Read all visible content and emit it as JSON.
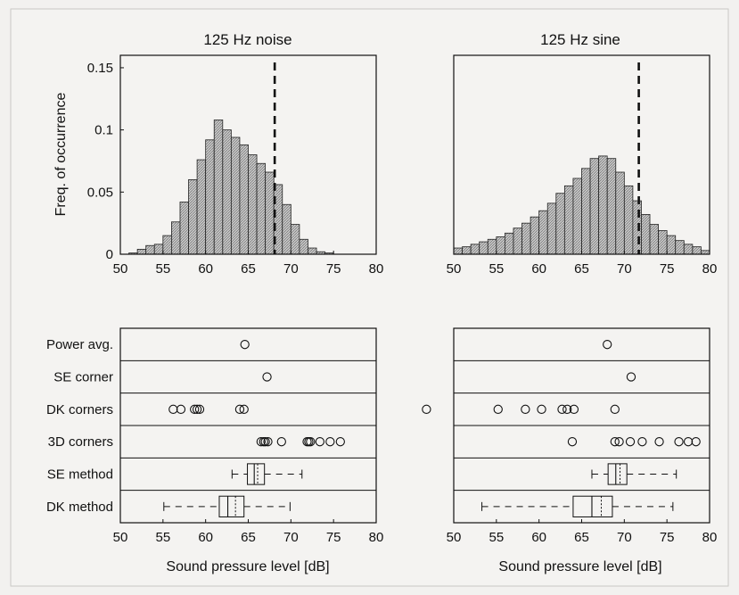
{
  "chart_data": [
    {
      "type": "bar",
      "title": "125 Hz noise",
      "ylabel": "Freq. of occurrence",
      "xlim": [
        50,
        80
      ],
      "ylim": [
        0,
        0.16
      ],
      "xticks": [
        "50",
        "55",
        "60",
        "65",
        "70",
        "75",
        "80"
      ],
      "yticks": [
        "0",
        "0.05",
        "0.1",
        "0.15"
      ],
      "bin_width": 1,
      "bin_centers": [
        50.5,
        51.5,
        52.5,
        53.5,
        54.5,
        55.5,
        56.5,
        57.5,
        58.5,
        59.5,
        60.5,
        61.5,
        62.5,
        63.5,
        64.5,
        65.5,
        66.5,
        67.5,
        68.5,
        69.5,
        70.5,
        71.5,
        72.5,
        73.5,
        74.5,
        75.5,
        76.5,
        77.5,
        78.5,
        79.5
      ],
      "values": [
        0,
        0.001,
        0.004,
        0.007,
        0.008,
        0.015,
        0.026,
        0.042,
        0.06,
        0.076,
        0.092,
        0.108,
        0.1,
        0.094,
        0.088,
        0.08,
        0.073,
        0.066,
        0.056,
        0.04,
        0.024,
        0.012,
        0.005,
        0.002,
        0.001,
        0,
        0,
        0,
        0,
        0
      ],
      "reference_line_x": 68.1
    },
    {
      "type": "bar",
      "title": "125 Hz sine",
      "xlim": [
        50,
        80
      ],
      "ylim": [
        0,
        0.16
      ],
      "xticks": [
        "50",
        "55",
        "60",
        "65",
        "70",
        "75",
        "80"
      ],
      "bin_width": 1,
      "bin_centers": [
        50.5,
        51.5,
        52.5,
        53.5,
        54.5,
        55.5,
        56.5,
        57.5,
        58.5,
        59.5,
        60.5,
        61.5,
        62.5,
        63.5,
        64.5,
        65.5,
        66.5,
        67.5,
        68.5,
        69.5,
        70.5,
        71.5,
        72.5,
        73.5,
        74.5,
        75.5,
        76.5,
        77.5,
        78.5,
        79.5
      ],
      "values": [
        0.005,
        0.006,
        0.008,
        0.01,
        0.012,
        0.014,
        0.017,
        0.021,
        0.025,
        0.03,
        0.035,
        0.041,
        0.049,
        0.055,
        0.061,
        0.069,
        0.077,
        0.079,
        0.077,
        0.066,
        0.055,
        0.043,
        0.032,
        0.024,
        0.019,
        0.015,
        0.011,
        0.008,
        0.006,
        0.003
      ],
      "reference_line_x": 71.7
    },
    {
      "type": "scatter",
      "xlabel": "Sound pressure level [dB]",
      "xlim": [
        50,
        80
      ],
      "xticks": [
        "50",
        "55",
        "60",
        "65",
        "70",
        "75",
        "80"
      ],
      "rows": [
        {
          "label": "Power avg.",
          "points": [
            64.6
          ]
        },
        {
          "label": "SE corner",
          "points": [
            67.2
          ]
        },
        {
          "label": "DK corners",
          "points": [
            56.2,
            57.1,
            58.7,
            59.0,
            59.3,
            64.0,
            64.5
          ]
        },
        {
          "label": "3D corners",
          "points": [
            66.5,
            66.8,
            67.0,
            67.3,
            68.9,
            71.9,
            72.1,
            72.3,
            73.4,
            74.6,
            75.8
          ]
        },
        {
          "label": "SE method",
          "box": {
            "whisker_low": 63.1,
            "q1": 64.9,
            "median": 65.7,
            "mean": 66.1,
            "q3": 66.9,
            "whisker_high": 71.3
          }
        },
        {
          "label": "DK method",
          "box": {
            "whisker_low": 55.1,
            "q1": 61.6,
            "median": 62.6,
            "mean": 63.5,
            "q3": 64.5,
            "whisker_high": 69.9
          }
        }
      ]
    },
    {
      "type": "scatter",
      "xlabel": "Sound pressure level [dB]",
      "xlim": [
        50,
        80
      ],
      "xticks": [
        "50",
        "55",
        "60",
        "65",
        "70",
        "75",
        "80"
      ],
      "rows": [
        {
          "label": "Power avg.",
          "points": [
            68.0
          ]
        },
        {
          "label": "SE corner",
          "points": [
            70.8
          ]
        },
        {
          "label": "DK corners",
          "points": [
            46.8,
            55.2,
            58.4,
            60.3,
            62.7,
            63.3,
            64.1,
            68.9
          ]
        },
        {
          "label": "3D corners",
          "points": [
            63.9,
            68.9,
            69.4,
            70.7,
            72.1,
            74.1,
            76.4,
            77.5,
            78.4
          ]
        },
        {
          "label": "SE method",
          "box": {
            "whisker_low": 66.2,
            "q1": 68.1,
            "median": 69.0,
            "mean": 69.5,
            "q3": 70.3,
            "whisker_high": 76.1
          }
        },
        {
          "label": "DK method",
          "box": {
            "whisker_low": 53.3,
            "q1": 64.0,
            "median": 66.2,
            "mean": 67.3,
            "q3": 68.6,
            "whisker_high": 75.7
          }
        }
      ]
    }
  ]
}
